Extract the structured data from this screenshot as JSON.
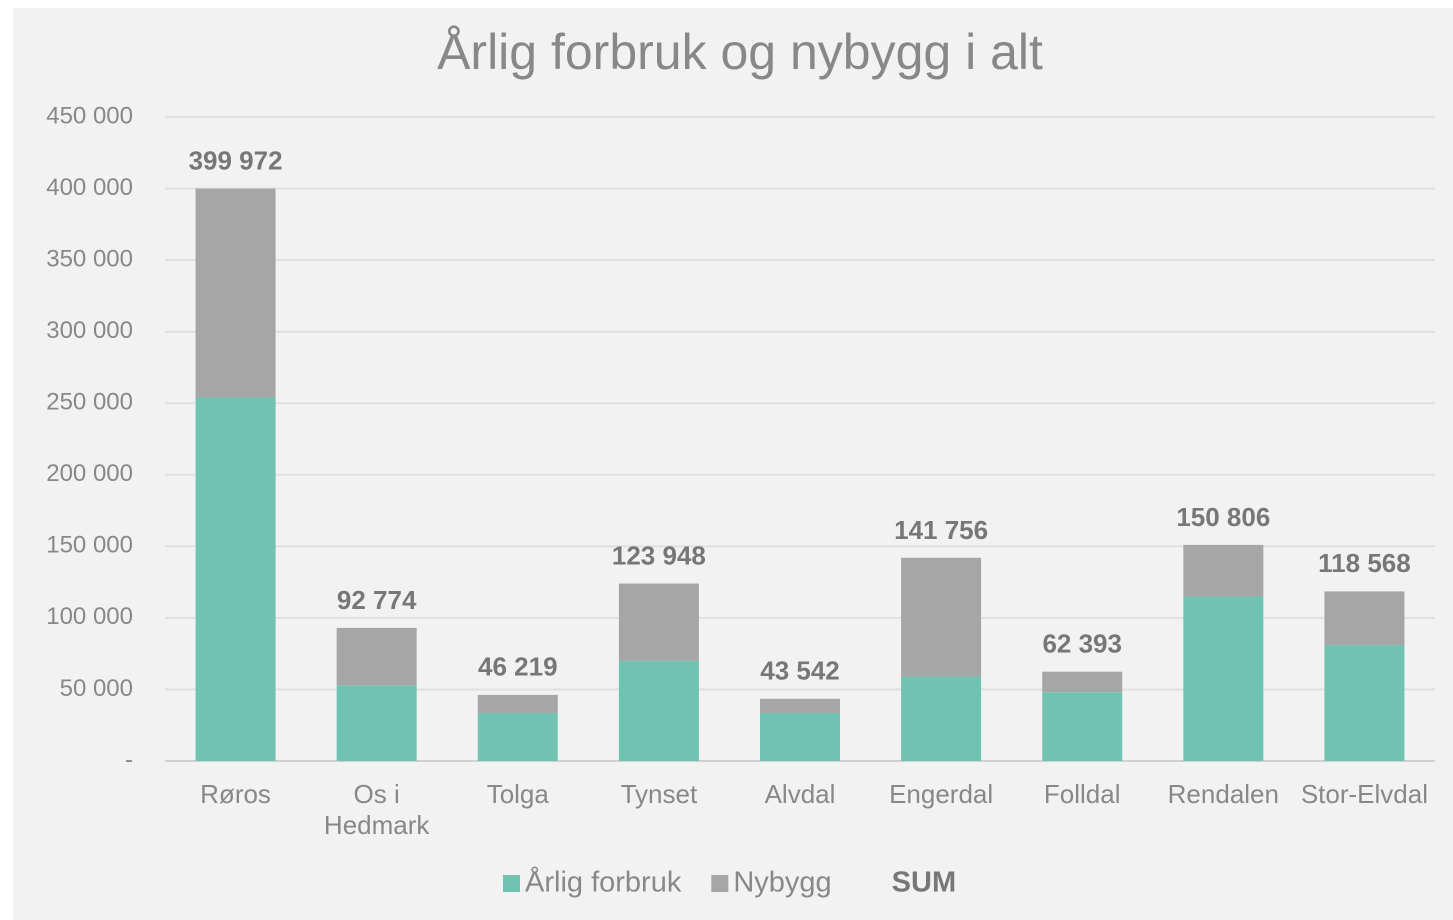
{
  "chart_data": {
    "type": "stacked-bar",
    "title": "Årlig forbruk og nybygg i alt",
    "categories": [
      "Røros",
      "Os i Hedmark",
      "Tolga",
      "Tynset",
      "Alvdal",
      "Engerdal",
      "Folldal",
      "Rendalen",
      "Stor-Elvdal"
    ],
    "series": [
      {
        "name": "Årlig forbruk",
        "color": "#70c3b3",
        "values": [
          254000,
          53000,
          33500,
          70000,
          33500,
          59000,
          48000,
          115000,
          81000
        ]
      },
      {
        "name": "Nybygg",
        "color": "#a6a6a6",
        "values": [
          146000,
          40000,
          12700,
          54000,
          10000,
          83000,
          14400,
          36000,
          37500
        ]
      },
      {
        "name": "SUM",
        "values": [
          399972,
          92774,
          46219,
          123948,
          43542,
          141756,
          62393,
          150806,
          118568
        ],
        "value_labels": [
          "399 972",
          "92 774",
          "46 219",
          "123 948",
          "43 542",
          "141 756",
          "62 393",
          "150 806",
          "118 568"
        ]
      }
    ],
    "ylim": [
      0,
      450000
    ],
    "yticks": [
      {
        "value": 0,
        "label": "-"
      },
      {
        "value": 50000,
        "label": "50 000"
      },
      {
        "value": 100000,
        "label": "100 000"
      },
      {
        "value": 150000,
        "label": "150 000"
      },
      {
        "value": 200000,
        "label": "200 000"
      },
      {
        "value": 250000,
        "label": "250 000"
      },
      {
        "value": 300000,
        "label": "300 000"
      },
      {
        "value": 350000,
        "label": "350 000"
      },
      {
        "value": 400000,
        "label": "400 000"
      },
      {
        "value": 450000,
        "label": "450 000"
      }
    ],
    "grid": true,
    "legend": "bottom"
  }
}
